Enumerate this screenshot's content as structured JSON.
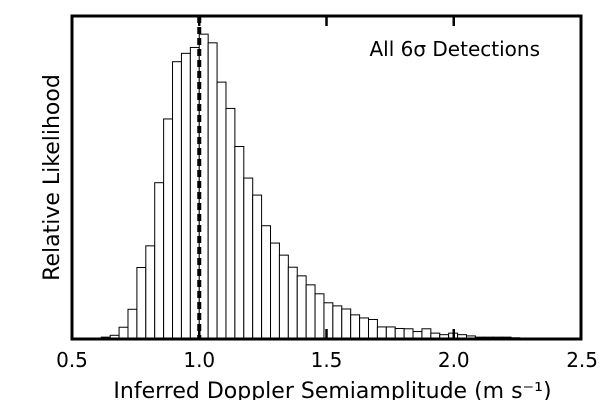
{
  "chart_data": {
    "type": "bar",
    "title": "",
    "annotation": "All 6σ Detections",
    "xlabel": "Inferred Doppler Semiamplitude (m s⁻¹)",
    "ylabel": "Relative Likelihood",
    "xlim": [
      0.5,
      2.5
    ],
    "ylim": [
      0,
      1.0
    ],
    "xticks": [
      0.5,
      1.0,
      1.5,
      2.0,
      2.5
    ],
    "xtick_labels": [
      "0.5",
      "1.0",
      "1.5",
      "2.0",
      "2.5"
    ],
    "yticks_shown": false,
    "grid": false,
    "legend": "none",
    "bin_width": 0.035,
    "bin_start": 0.615,
    "values": [
      0.006,
      0.012,
      0.038,
      0.096,
      0.231,
      0.301,
      0.505,
      0.711,
      0.896,
      0.923,
      0.942,
      0.985,
      0.957,
      0.83,
      0.745,
      0.622,
      0.52,
      0.465,
      0.366,
      0.31,
      0.271,
      0.232,
      0.204,
      0.175,
      0.146,
      0.117,
      0.107,
      0.097,
      0.078,
      0.068,
      0.063,
      0.039,
      0.039,
      0.034,
      0.033,
      0.024,
      0.033,
      0.019,
      0.014,
      0.019,
      0.014,
      0.01,
      0.006,
      0.006,
      0.006,
      0.006,
      0.004,
      0.003,
      0.003,
      0.002
    ],
    "vline": {
      "x": 1.0,
      "style": "dashed",
      "color": "#000000"
    }
  }
}
